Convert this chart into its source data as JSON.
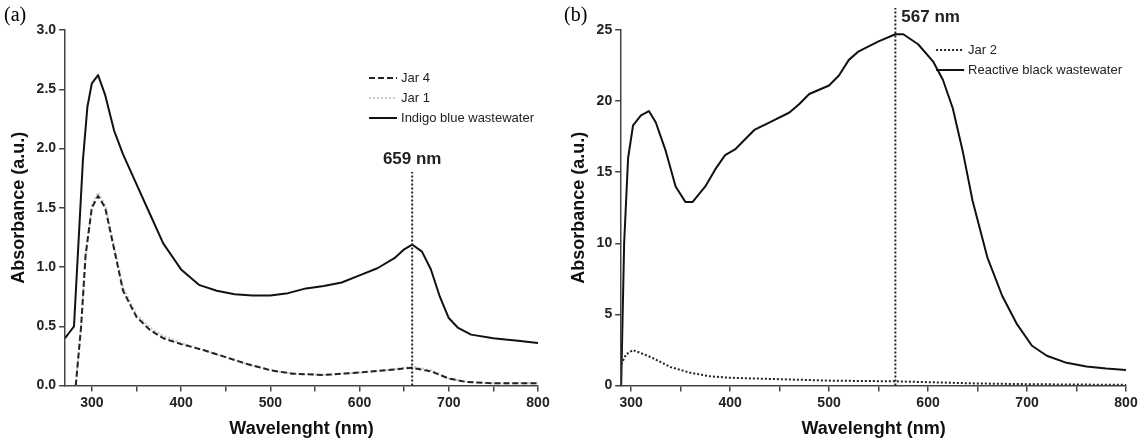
{
  "chart_data": [
    {
      "type": "line",
      "title": "(a)",
      "xlabel": "Wavelenght (nm)",
      "ylabel": "Absorbance (a.u.)",
      "xlim": [
        270,
        800
      ],
      "ylim": [
        0,
        3.0
      ],
      "xticks": [
        300,
        {
          "value": 350,
          "label": null
        },
        400,
        {
          "value": 450,
          "label": null
        },
        500,
        {
          "value": 550,
          "label": null
        },
        600,
        {
          "value": 650,
          "label": null
        },
        700,
        {
          "value": 750,
          "label": null
        },
        800
      ],
      "yticks": [
        {
          "value": 0,
          "label": "0.0"
        },
        0.5,
        {
          "value": 1,
          "label": "1.0"
        },
        1.5,
        {
          "value": 2,
          "label": "2.0"
        },
        2.5,
        {
          "value": 3,
          "label": "3.0"
        }
      ],
      "legend": "top right",
      "marker": "none",
      "grid": false,
      "ref_lines": [
        {
          "axis": "x",
          "value": 659,
          "label": "659 nm",
          "line_style": "dotted",
          "color": "#222222"
        }
      ],
      "series": [
        {
          "name": "Jar 4",
          "color": "#222222",
          "line_style": "dashed",
          "x": [
            282,
            288,
            293,
            300,
            307,
            315,
            325,
            335,
            350,
            365,
            380,
            400,
            425,
            450,
            475,
            500,
            525,
            560,
            600,
            630,
            659,
            680,
            700,
            720,
            750,
            800
          ],
          "values": [
            0,
            0.5,
            1.1,
            1.5,
            1.6,
            1.5,
            1.15,
            0.8,
            0.58,
            0.47,
            0.4,
            0.35,
            0.3,
            0.24,
            0.18,
            0.13,
            0.1,
            0.09,
            0.11,
            0.13,
            0.15,
            0.12,
            0.06,
            0.03,
            0.02,
            0.02
          ]
        },
        {
          "name": "Jar 1",
          "color": "#c8c8c8",
          "line_style": "dotted",
          "x": [
            282,
            288,
            293,
            300,
            307,
            315,
            325,
            335,
            350,
            365,
            380,
            400,
            425,
            450,
            475,
            500,
            525,
            560,
            600,
            630,
            659,
            680,
            700,
            720,
            750,
            800
          ],
          "values": [
            0,
            0.5,
            1.1,
            1.52,
            1.63,
            1.52,
            1.18,
            0.83,
            0.6,
            0.49,
            0.42,
            0.36,
            0.3,
            0.24,
            0.18,
            0.13,
            0.1,
            0.09,
            0.11,
            0.13,
            0.16,
            0.13,
            0.06,
            0.03,
            0.02,
            0.02
          ]
        },
        {
          "name": "Indigo blue wastewater",
          "color": "#111111",
          "line_style": "solid",
          "x": [
            270,
            275,
            280,
            285,
            290,
            295,
            300,
            307,
            315,
            325,
            335,
            350,
            365,
            380,
            400,
            420,
            440,
            460,
            480,
            500,
            520,
            540,
            560,
            580,
            600,
            620,
            640,
            650,
            659,
            670,
            680,
            690,
            700,
            710,
            725,
            750,
            775,
            800
          ],
          "values": [
            0.4,
            0.45,
            0.5,
            1.2,
            1.9,
            2.35,
            2.55,
            2.62,
            2.45,
            2.15,
            1.95,
            1.7,
            1.45,
            1.2,
            0.98,
            0.85,
            0.8,
            0.77,
            0.76,
            0.76,
            0.78,
            0.82,
            0.84,
            0.87,
            0.93,
            0.99,
            1.08,
            1.15,
            1.19,
            1.13,
            0.98,
            0.75,
            0.57,
            0.49,
            0.43,
            0.4,
            0.38,
            0.36
          ]
        }
      ]
    },
    {
      "type": "line",
      "title": "(b)",
      "xlabel": "Wavelenght (nm)",
      "ylabel": "Absorbance (a.u.)",
      "xlim": [
        290,
        800
      ],
      "ylim": [
        0,
        25
      ],
      "xticks": [
        300,
        {
          "value": 350,
          "label": null
        },
        400,
        {
          "value": 450,
          "label": null
        },
        500,
        {
          "value": 550,
          "label": null
        },
        600,
        {
          "value": 650,
          "label": null
        },
        700,
        {
          "value": 750,
          "label": null
        },
        800
      ],
      "yticks": [
        0,
        5,
        10,
        15,
        20,
        25
      ],
      "legend": "top right",
      "marker": "none",
      "grid": false,
      "ref_lines": [
        {
          "axis": "x",
          "value": 567,
          "label": "567 nm",
          "line_style": "dotted",
          "color": "#222222"
        }
      ],
      "series": [
        {
          "name": "Jar 2",
          "color": "#222222",
          "line_style": "dotted",
          "x": [
            290,
            295,
            302,
            320,
            340,
            360,
            380,
            400,
            450,
            500,
            567,
            650,
            700,
            800
          ],
          "values": [
            1.5,
            2.2,
            2.5,
            2.0,
            1.3,
            0.9,
            0.65,
            0.55,
            0.45,
            0.35,
            0.3,
            0.15,
            0.1,
            0.05
          ]
        },
        {
          "name": "Reactive black wastewater",
          "color": "#111111",
          "line_style": "solid",
          "x": [
            290,
            293,
            297,
            302,
            310,
            318,
            325,
            335,
            345,
            355,
            362,
            375,
            385,
            395,
            405,
            415,
            425,
            440,
            460,
            470,
            480,
            490,
            500,
            510,
            520,
            530,
            550,
            567,
            575,
            590,
            605,
            615,
            625,
            635,
            645,
            660,
            675,
            690,
            705,
            720,
            740,
            760,
            780,
            800
          ],
          "values": [
            0,
            10,
            16,
            18.3,
            19,
            19.3,
            18.5,
            16.5,
            14,
            12.9,
            12.9,
            14,
            15.2,
            16.2,
            16.6,
            17.3,
            18,
            18.5,
            19.2,
            19.8,
            20.5,
            20.8,
            21.1,
            21.8,
            22.9,
            23.5,
            24.2,
            24.7,
            24.7,
            24,
            22.8,
            21.5,
            19.5,
            16.5,
            13,
            9,
            6.3,
            4.3,
            2.8,
            2.1,
            1.6,
            1.35,
            1.2,
            1.1
          ]
        }
      ]
    }
  ]
}
